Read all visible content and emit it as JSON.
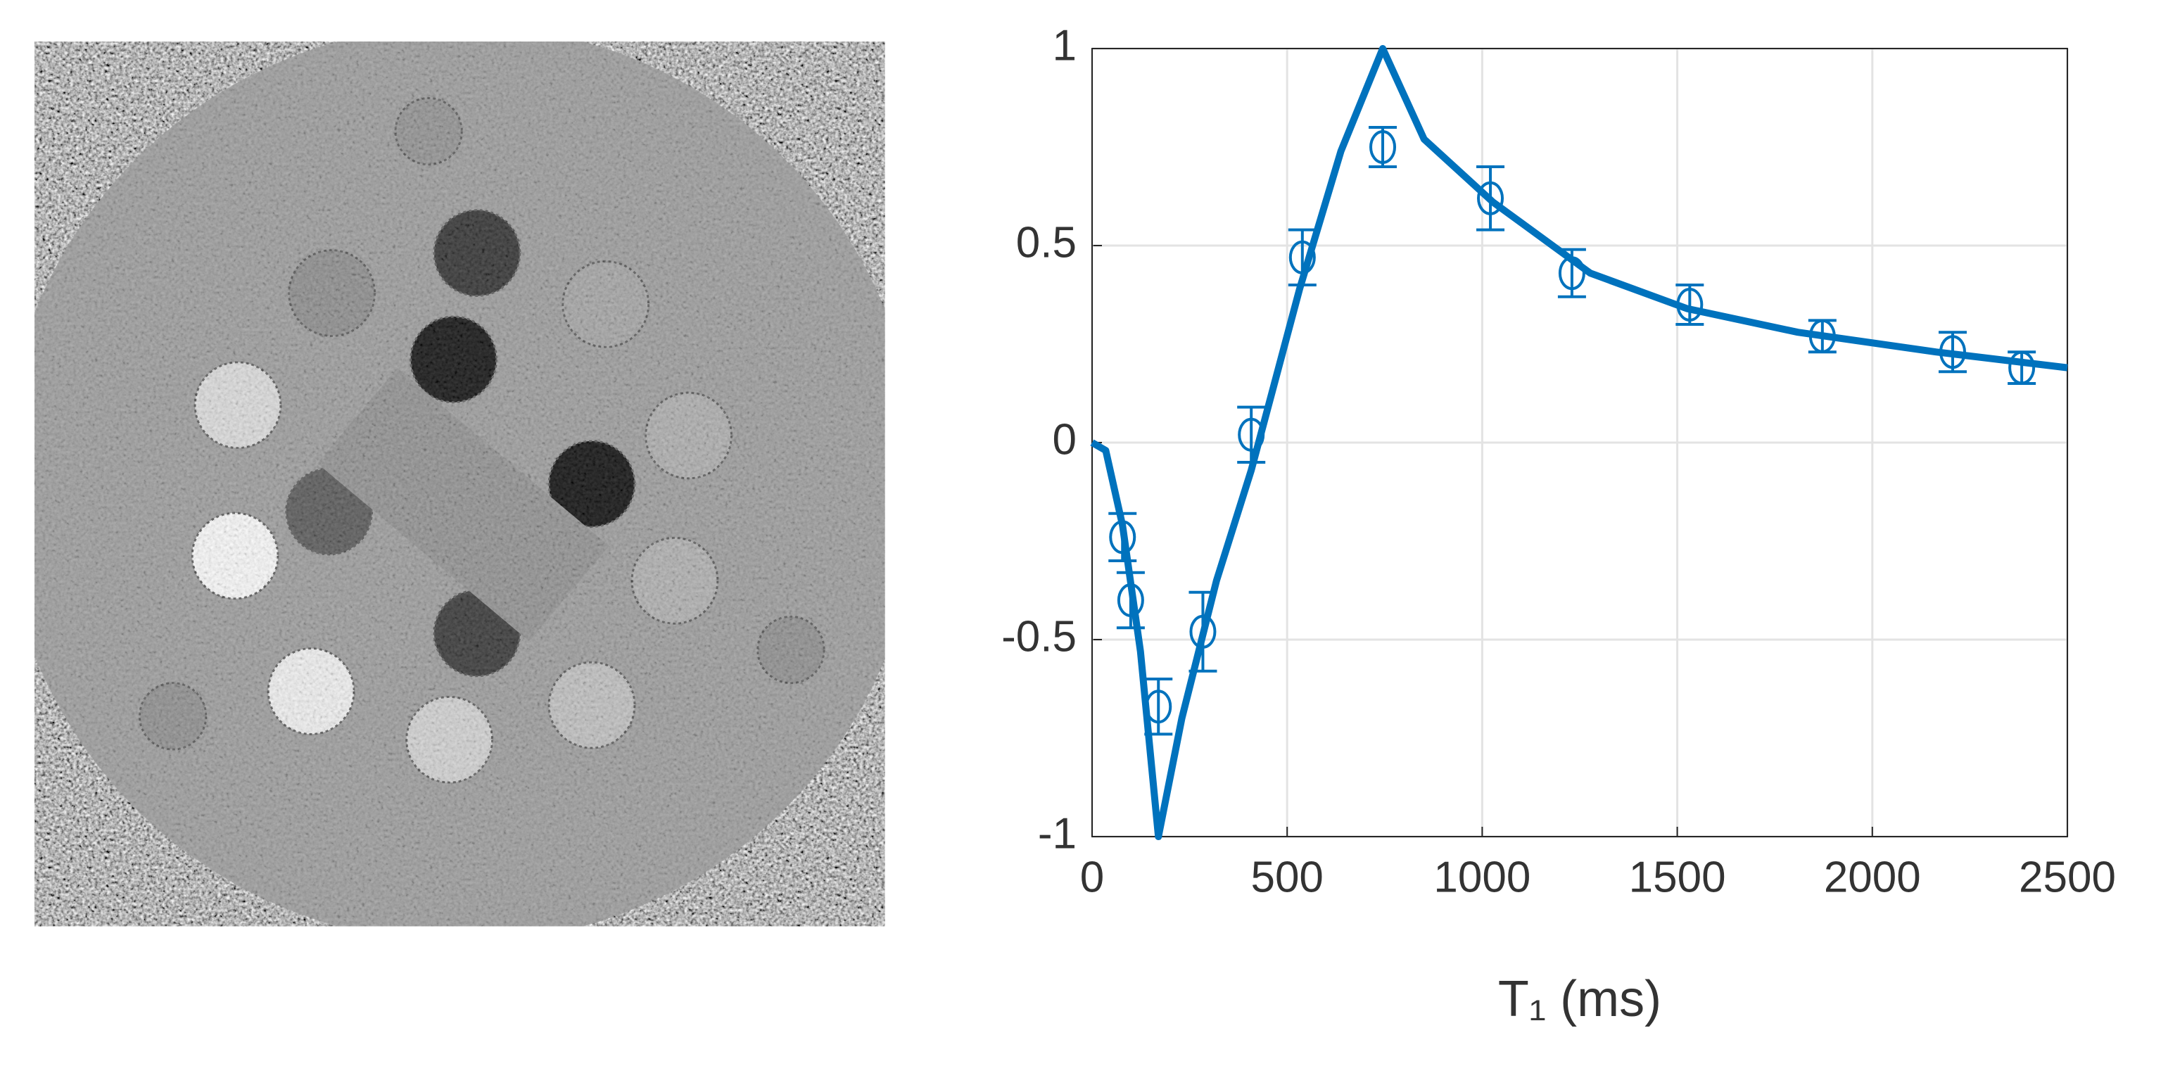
{
  "chart_data": {
    "type": "scatter",
    "xlabel": "T₁ (ms)",
    "xlim": [
      0,
      2500
    ],
    "xticks": [
      0,
      500,
      1000,
      1500,
      2000,
      2500
    ],
    "ylim": [
      -1,
      1
    ],
    "yticks": [
      1,
      0.5,
      0,
      -0.5,
      -1
    ],
    "grid": true,
    "series": [
      {
        "type": "line",
        "color": "#0072bd",
        "x": [
          0,
          35,
          78,
          124,
          170,
          230,
          319,
          408,
          532,
          638,
          745,
          851,
          1028,
          1277,
          1525,
          1809,
          2163,
          2500
        ],
        "values": [
          0,
          -0.02,
          -0.21,
          -0.53,
          -1,
          -0.7,
          -0.35,
          -0.07,
          0.39,
          0.74,
          1,
          0.77,
          0.61,
          0.43,
          0.34,
          0.28,
          0.23,
          0.19
        ]
      },
      {
        "type": "scatter",
        "color": "#0072bd",
        "x": [
          78,
          99,
          170,
          284,
          408,
          539,
          745,
          1021,
          1230,
          1532,
          1872,
          2206,
          2383
        ],
        "values": [
          -0.24,
          -0.4,
          -0.67,
          -0.48,
          0.02,
          0.47,
          0.75,
          0.62,
          0.43,
          0.35,
          0.27,
          0.23,
          0.19
        ],
        "errors": [
          0.06,
          0.07,
          0.07,
          0.1,
          0.07,
          0.07,
          0.05,
          0.08,
          0.06,
          0.05,
          0.04,
          0.05,
          0.04
        ]
      }
    ]
  }
}
